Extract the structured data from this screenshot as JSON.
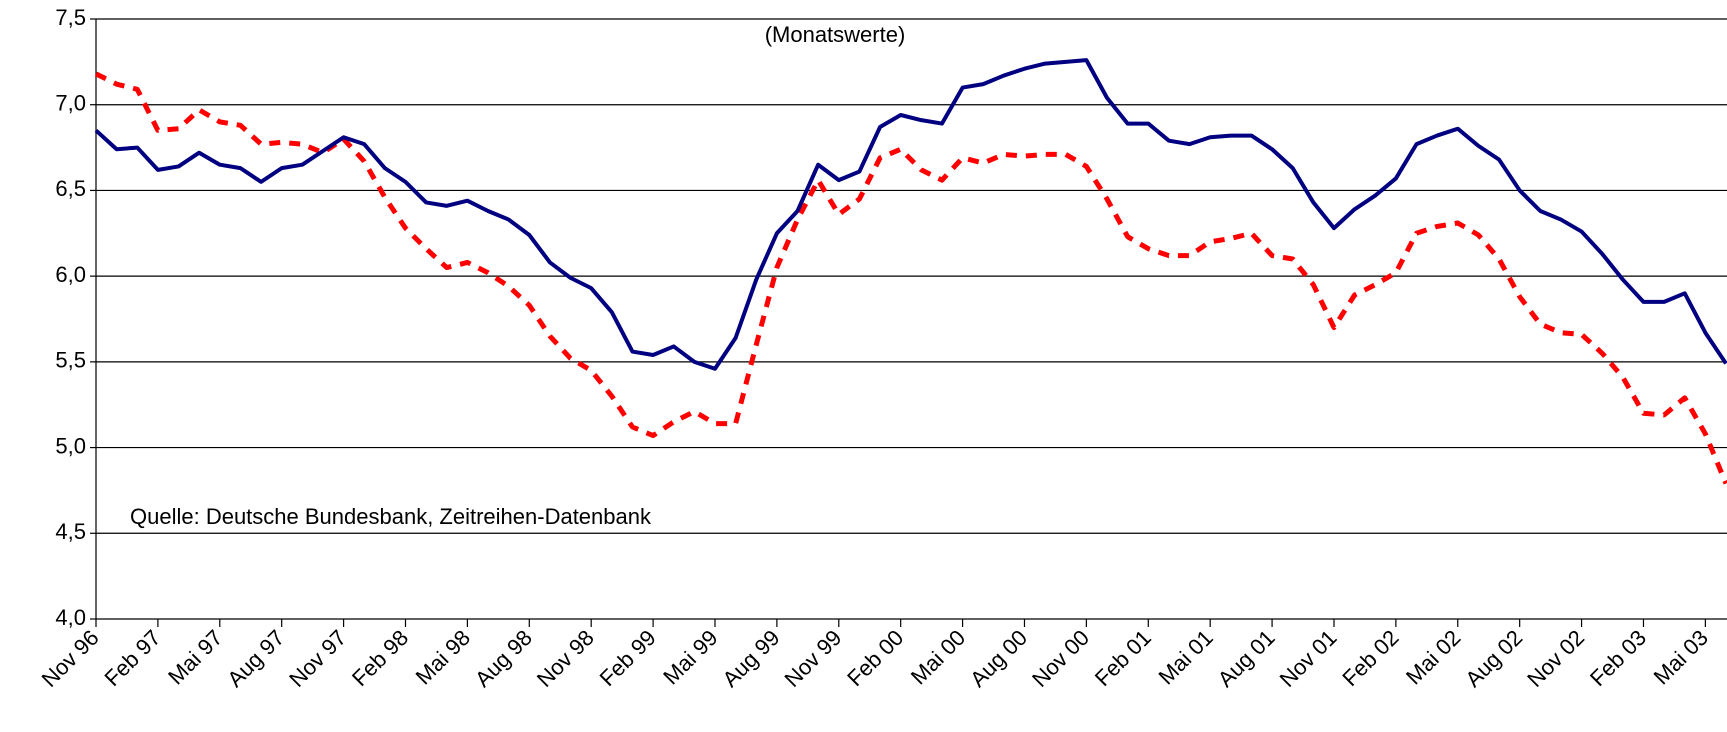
{
  "chart_data": {
    "type": "line",
    "subtitle": "(Monatswerte)",
    "annotation": "Quelle: Deutsche Bundesbank, Zeitreihen-Datenbank",
    "categories": [
      "Nov 96",
      null,
      null,
      "Feb 97",
      null,
      null,
      "Mai 97",
      null,
      null,
      "Aug 97",
      null,
      null,
      "Nov 97",
      null,
      null,
      "Feb 98",
      null,
      null,
      "Mai 98",
      null,
      null,
      "Aug 98",
      null,
      null,
      "Nov 98",
      null,
      null,
      "Feb 99",
      null,
      null,
      "Mai 99",
      null,
      null,
      "Aug 99",
      null,
      null,
      "Nov 99",
      null,
      null,
      "Feb 00",
      null,
      null,
      "Mai 00",
      null,
      null,
      "Aug 00",
      null,
      null,
      "Nov 00",
      null,
      null,
      "Feb 01",
      null,
      null,
      "Mai 01",
      null,
      null,
      "Aug 01",
      null,
      null,
      "Nov 01",
      null,
      null,
      "Feb 02",
      null,
      null,
      "Mai 02",
      null,
      null,
      "Aug 02",
      null,
      null,
      "Nov 02",
      null,
      null,
      "Feb 03",
      null,
      null,
      "Mai 03",
      null
    ],
    "series": [
      {
        "color": "#000080",
        "dashed": false,
        "values": [
          6.85,
          6.74,
          6.75,
          6.62,
          6.64,
          6.72,
          6.65,
          6.63,
          6.55,
          6.63,
          6.65,
          6.73,
          6.81,
          6.77,
          6.63,
          6.55,
          6.43,
          6.41,
          6.44,
          6.38,
          6.33,
          6.24,
          6.08,
          5.99,
          5.93,
          5.79,
          5.56,
          5.54,
          5.59,
          5.5,
          5.46,
          5.64,
          5.98,
          6.25,
          6.38,
          6.65,
          6.56,
          6.61,
          6.87,
          6.94,
          6.91,
          6.89,
          7.1,
          7.12,
          7.17,
          7.21,
          7.24,
          7.25,
          7.26,
          7.04,
          6.89,
          6.89,
          6.79,
          6.77,
          6.81,
          6.82,
          6.82,
          6.74,
          6.63,
          6.43,
          6.28,
          6.39,
          6.47,
          6.57,
          6.77,
          6.82,
          6.86,
          6.76,
          6.68,
          6.5,
          6.38,
          6.33,
          6.26,
          6.13,
          5.98,
          5.85,
          5.85,
          5.9,
          5.67,
          5.49
        ]
      },
      {
        "color": "#ff0000",
        "dashed": true,
        "values": [
          7.18,
          7.12,
          7.09,
          6.85,
          6.86,
          6.97,
          6.9,
          6.88,
          6.77,
          6.78,
          6.77,
          6.72,
          6.8,
          6.67,
          6.46,
          6.28,
          6.16,
          6.05,
          6.08,
          6.02,
          5.94,
          5.83,
          5.65,
          5.52,
          5.45,
          5.3,
          5.12,
          5.07,
          5.15,
          5.21,
          5.14,
          5.14,
          5.6,
          6.05,
          6.33,
          6.56,
          6.36,
          6.45,
          6.69,
          6.74,
          6.62,
          6.56,
          6.69,
          6.66,
          6.71,
          6.7,
          6.71,
          6.71,
          6.64,
          6.45,
          6.23,
          6.16,
          6.12,
          6.12,
          6.2,
          6.22,
          6.25,
          6.12,
          6.1,
          5.95,
          5.7,
          5.89,
          5.95,
          6.02,
          6.25,
          6.29,
          6.31,
          6.24,
          6.1,
          5.88,
          5.72,
          5.67,
          5.66,
          5.55,
          5.41,
          5.2,
          5.19,
          5.29,
          5.08,
          4.79
        ]
      }
    ],
    "ylim": [
      4.0,
      7.5
    ],
    "yticks": [
      {
        "value": 4.0,
        "label": "4,0"
      },
      {
        "value": 4.5,
        "label": "4,5"
      },
      {
        "value": 5.0,
        "label": "5,0"
      },
      {
        "value": 5.5,
        "label": "5,5"
      },
      {
        "value": 6.0,
        "label": "6,0"
      },
      {
        "value": 6.5,
        "label": "6,5"
      },
      {
        "value": 7.0,
        "label": "7,0"
      },
      {
        "value": 7.5,
        "label": "7,5"
      }
    ],
    "grid": true
  }
}
